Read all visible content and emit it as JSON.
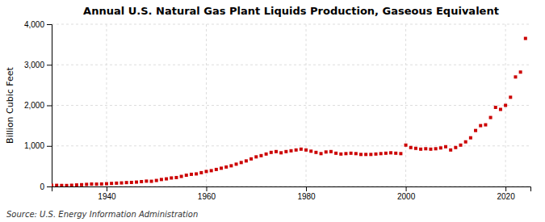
{
  "chart_data": {
    "type": "scatter",
    "title": "Annual U.S. Natural Gas Plant Liquids Production, Gaseous Equivalent",
    "ylabel": "Billion Cubic Feet",
    "annotations": [
      "Source: U.S. Energy Information Administration"
    ],
    "color": "#cc0000",
    "marker": "square",
    "grid": true,
    "xlim": [
      1929,
      2025
    ],
    "ylim": [
      0,
      4000
    ],
    "xticks": [
      1940,
      1960,
      1980,
      2000,
      2020
    ],
    "yticks": [
      0,
      {
        "value": 1000,
        "label": "1,000"
      },
      {
        "value": 2000,
        "label": "2,000"
      },
      {
        "value": 3000,
        "label": "3,000"
      },
      {
        "value": 4000,
        "label": "4,000"
      }
    ],
    "x": [
      1929,
      1930,
      1931,
      1932,
      1933,
      1934,
      1935,
      1936,
      1937,
      1938,
      1939,
      1940,
      1941,
      1942,
      1943,
      1944,
      1945,
      1946,
      1947,
      1948,
      1949,
      1950,
      1951,
      1952,
      1953,
      1954,
      1955,
      1956,
      1957,
      1958,
      1959,
      1960,
      1961,
      1962,
      1963,
      1964,
      1965,
      1966,
      1967,
      1968,
      1969,
      1970,
      1971,
      1972,
      1973,
      1974,
      1975,
      1976,
      1977,
      1978,
      1979,
      1980,
      1981,
      1982,
      1983,
      1984,
      1985,
      1986,
      1987,
      1988,
      1989,
      1990,
      1991,
      1992,
      1993,
      1994,
      1995,
      1996,
      1997,
      1998,
      1999,
      2000,
      2001,
      2002,
      2003,
      2004,
      2005,
      2006,
      2007,
      2008,
      2009,
      2010,
      2011,
      2012,
      2013,
      2014,
      2015,
      2016,
      2017,
      2018,
      2019,
      2020,
      2021,
      2022,
      2023,
      2024
    ],
    "values": [
      30,
      28,
      25,
      24,
      30,
      38,
      44,
      52,
      60,
      58,
      62,
      68,
      75,
      82,
      88,
      96,
      100,
      108,
      120,
      132,
      128,
      148,
      172,
      188,
      210,
      220,
      248,
      278,
      300,
      310,
      340,
      370,
      390,
      420,
      450,
      480,
      510,
      550,
      590,
      630,
      680,
      730,
      760,
      800,
      840,
      860,
      830,
      860,
      880,
      900,
      920,
      900,
      870,
      840,
      810,
      850,
      860,
      820,
      800,
      810,
      820,
      810,
      790,
      790,
      790,
      800,
      810,
      820,
      830,
      820,
      810,
      1020,
      960,
      940,
      920,
      930,
      920,
      930,
      950,
      980,
      900,
      960,
      1020,
      1100,
      1200,
      1380,
      1500,
      1520,
      1700,
      1950,
      1900,
      2000,
      2200,
      2700,
      2820,
      3650
    ]
  }
}
